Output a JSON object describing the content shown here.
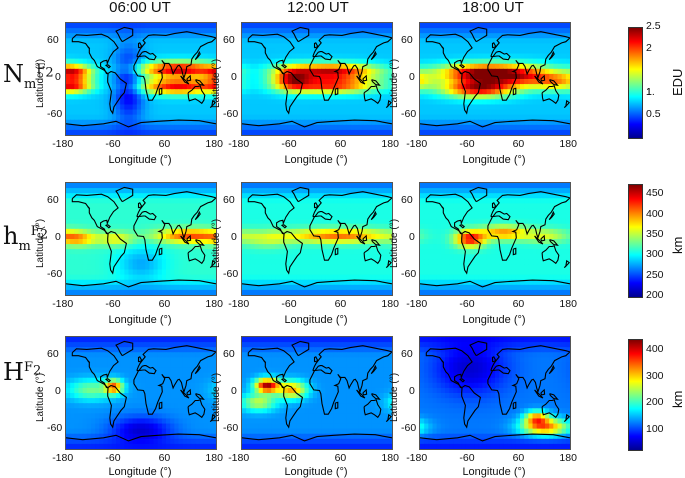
{
  "columns": [
    "06:00 UT",
    "12:00 UT",
    "18:00 UT"
  ],
  "rows": [
    {
      "label_base": "N",
      "label_sub": "m",
      "label_sup": "F",
      "label_sup_sub": "2"
    },
    {
      "label_base": "h",
      "label_sub": "m",
      "label_sup": "F",
      "label_sup_sub": "2"
    },
    {
      "label_base": "H",
      "label_sub": "",
      "label_sup": "F",
      "label_sup_sub": "2"
    }
  ],
  "axes": {
    "xlabel": "Longitude (°)",
    "ylabel": "Latitude (°)",
    "xticks": [
      "-180",
      "-60",
      "60",
      "180"
    ],
    "yticks": [
      "60",
      "0",
      "-60"
    ],
    "xlim": [
      -180,
      180
    ],
    "ylim": [
      -90,
      90
    ]
  },
  "colorbars": [
    {
      "unit": "EDU",
      "ticks": [
        "2.5",
        "2",
        "1.",
        "1",
        "0.5"
      ],
      "range": [
        0,
        2.5
      ]
    },
    {
      "unit": "km",
      "ticks": [
        "450",
        "400",
        "350",
        "300",
        "250",
        "200"
      ],
      "range": [
        200,
        475
      ]
    },
    {
      "unit": "km",
      "ticks": [
        "400",
        "300",
        "200",
        "100"
      ],
      "range": [
        30,
        440
      ]
    }
  ],
  "colormap": [
    "#00008f",
    "#0000ff",
    "#0080ff",
    "#00ffff",
    "#80ff80",
    "#ffff00",
    "#ff8000",
    "#ff0000",
    "#800000"
  ],
  "chart_data": {
    "type": "heatmap",
    "description_of_grid": "3 rows (NmF2, hmF2, HF2) x 3 columns (06:00, 12:00, 18:00 UT); global lon-lat maps",
    "xlim": [
      -180,
      180
    ],
    "ylim": [
      -90,
      90
    ],
    "panels": [
      {
        "row": "NmF2",
        "time": "06:00 UT",
        "unit": "EDU",
        "base": 0.8,
        "features": [
          {
            "lon": 90,
            "lat": 15,
            "value": 2.3,
            "lon_spread": 70,
            "lat_spread": 9
          },
          {
            "lon": 90,
            "lat": -12,
            "value": 2.2,
            "lon_spread": 70,
            "lat_spread": 9
          },
          {
            "lon": -160,
            "lat": 10,
            "value": 1.9,
            "lon_spread": 30,
            "lat_spread": 8
          },
          {
            "lon": -160,
            "lat": -10,
            "value": 1.8,
            "lon_spread": 30,
            "lat_spread": 8
          },
          {
            "lon": -30,
            "lat": -10,
            "value": 0.2,
            "lon_spread": 25,
            "lat_spread": 40
          }
        ]
      },
      {
        "row": "NmF2",
        "time": "12:00 UT",
        "unit": "EDU",
        "base": 0.8,
        "features": [
          {
            "lon": 30,
            "lat": 12,
            "value": 2.3,
            "lon_spread": 80,
            "lat_spread": 9
          },
          {
            "lon": 30,
            "lat": -10,
            "value": 2.1,
            "lon_spread": 80,
            "lat_spread": 9
          },
          {
            "lon": -60,
            "lat": 0,
            "value": 1.8,
            "lon_spread": 30,
            "lat_spread": 12
          }
        ]
      },
      {
        "row": "NmF2",
        "time": "18:00 UT",
        "unit": "EDU",
        "base": 0.8,
        "features": [
          {
            "lon": -40,
            "lat": 10,
            "value": 2.2,
            "lon_spread": 70,
            "lat_spread": 10
          },
          {
            "lon": -40,
            "lat": -15,
            "value": 2.3,
            "lon_spread": 60,
            "lat_spread": 10
          },
          {
            "lon": 60,
            "lat": 5,
            "value": 1.9,
            "lon_spread": 70,
            "lat_spread": 12
          },
          {
            "lon": 150,
            "lat": -5,
            "value": 1.5,
            "lon_spread": 40,
            "lat_spread": 10
          }
        ]
      },
      {
        "row": "hmF2",
        "time": "06:00 UT",
        "unit": "km",
        "base": 315,
        "features": [
          {
            "lon": 120,
            "lat": 5,
            "value": 420,
            "lon_spread": 60,
            "lat_spread": 8
          },
          {
            "lon": -150,
            "lat": 0,
            "value": 380,
            "lon_spread": 30,
            "lat_spread": 8
          },
          {
            "lon": -60,
            "lat": 0,
            "value": 370,
            "lon_spread": 30,
            "lat_spread": 8
          },
          {
            "lon": 0,
            "lat": -40,
            "value": 280,
            "lon_spread": 40,
            "lat_spread": 20
          }
        ]
      },
      {
        "row": "hmF2",
        "time": "12:00 UT",
        "unit": "km",
        "base": 310,
        "features": [
          {
            "lon": 50,
            "lat": 5,
            "value": 410,
            "lon_spread": 90,
            "lat_spread": 8
          },
          {
            "lon": -120,
            "lat": 0,
            "value": 350,
            "lon_spread": 40,
            "lat_spread": 10
          }
        ]
      },
      {
        "row": "hmF2",
        "time": "18:00 UT",
        "unit": "km",
        "base": 310,
        "features": [
          {
            "lon": -60,
            "lat": 0,
            "value": 440,
            "lon_spread": 25,
            "lat_spread": 9
          },
          {
            "lon": 20,
            "lat": 10,
            "value": 400,
            "lon_spread": 40,
            "lat_spread": 8
          },
          {
            "lon": 120,
            "lat": 5,
            "value": 360,
            "lon_spread": 40,
            "lat_spread": 8
          }
        ]
      },
      {
        "row": "HF2",
        "time": "06:00 UT",
        "unit": "km",
        "base": 140,
        "features": [
          {
            "lon": -65,
            "lat": 10,
            "value": 330,
            "lon_spread": 15,
            "lat_spread": 8
          },
          {
            "lon": -120,
            "lat": 5,
            "value": 230,
            "lon_spread": 40,
            "lat_spread": 12
          },
          {
            "lon": 0,
            "lat": -60,
            "value": 60,
            "lon_spread": 50,
            "lat_spread": 15
          }
        ]
      },
      {
        "row": "HF2",
        "time": "12:00 UT",
        "unit": "km",
        "base": 140,
        "features": [
          {
            "lon": -120,
            "lat": 12,
            "value": 420,
            "lon_spread": 20,
            "lat_spread": 8
          },
          {
            "lon": -60,
            "lat": 5,
            "value": 320,
            "lon_spread": 25,
            "lat_spread": 10
          },
          {
            "lon": -140,
            "lat": -15,
            "value": 260,
            "lon_spread": 30,
            "lat_spread": 10
          }
        ]
      },
      {
        "row": "HF2",
        "time": "18:00 UT",
        "unit": "km",
        "base": 130,
        "features": [
          {
            "lon": 120,
            "lat": -55,
            "value": 340,
            "lon_spread": 40,
            "lat_spread": 10
          },
          {
            "lon": 100,
            "lat": -40,
            "value": 300,
            "lon_spread": 20,
            "lat_spread": 8
          },
          {
            "lon": -60,
            "lat": 40,
            "value": 60,
            "lon_spread": 60,
            "lat_spread": 30
          }
        ]
      }
    ]
  }
}
